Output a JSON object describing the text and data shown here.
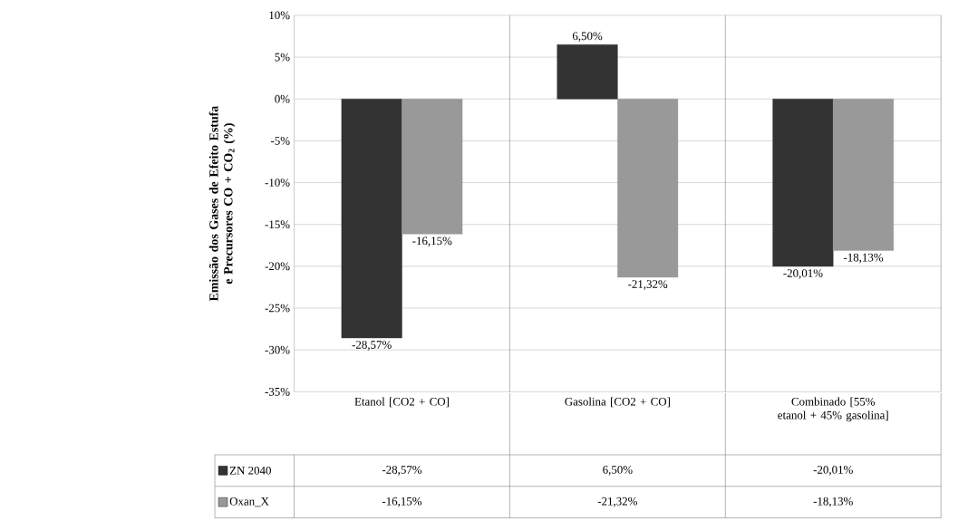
{
  "chart_data": {
    "type": "bar",
    "ylabel": "Emissão dos Gases de Efeito Estufa e Precursores CO + CO$_{2}$ (%)",
    "categories": [
      "Etanol [CO2 + CO]",
      "Gasolina [CO2 + CO]",
      "Combinado [55% etanol + 45% gasolina]"
    ],
    "series": [
      {
        "name": "ZN 2040",
        "color": "#333333",
        "values": [
          -28.57,
          6.5,
          -20.01
        ],
        "value_labels": [
          "-28,57%",
          "6,50%",
          "-20,01%"
        ]
      },
      {
        "name": "Oxan_X",
        "color": "#999999",
        "values": [
          -16.15,
          -21.32,
          -18.13
        ],
        "value_labels": [
          "-16,15%",
          "-21,32%",
          "-18,13%"
        ]
      }
    ],
    "ylim": [
      -35,
      10
    ],
    "yticks": [
      {
        "value": 10,
        "label": "10%"
      },
      {
        "value": 5,
        "label": "5%"
      },
      {
        "value": 0,
        "label": "0%"
      },
      {
        "value": -5,
        "label": "-5%"
      },
      {
        "value": -10,
        "label": "-10%"
      },
      {
        "value": -15,
        "label": "-15%"
      },
      {
        "value": -20,
        "label": "-20%"
      },
      {
        "value": -25,
        "label": "-25%"
      },
      {
        "value": -30,
        "label": "-30%"
      },
      {
        "value": -35,
        "label": "-35%"
      }
    ],
    "grid": "y",
    "legend": "bottom"
  }
}
